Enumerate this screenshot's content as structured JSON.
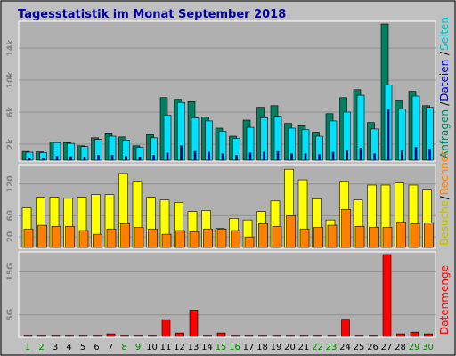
{
  "chart_data": {
    "type": "bar",
    "title": "Tagesstatistik im Monat September 2018",
    "colors": {
      "background": "#c0c0c0",
      "title": "#0000a0",
      "anfragen": "#008060",
      "dateien": "#00e0ff",
      "seiten": "#0000c0",
      "besuche": "#ffff00",
      "rechner": "#ff8000",
      "datenmenge": "#ff0000",
      "weekday_label": "#0000a0",
      "weekend_label": "#008000"
    },
    "legend": {
      "upper": [
        {
          "text": "Anfragen",
          "color": "#008060"
        },
        {
          "text": "Dateien",
          "color": "#0000c0"
        },
        {
          "text": "Seiten",
          "color": "#00c0c0"
        }
      ],
      "middle": [
        {
          "text": "Besuche",
          "color": "#c0c000"
        },
        {
          "text": "Rechner",
          "color": "#ff8000"
        }
      ],
      "lower": [
        {
          "text": "Datenmenge",
          "color": "#ff0000"
        }
      ]
    },
    "days": [
      1,
      2,
      3,
      4,
      5,
      6,
      7,
      8,
      9,
      10,
      11,
      12,
      13,
      14,
      15,
      16,
      17,
      18,
      19,
      20,
      21,
      22,
      23,
      24,
      25,
      26,
      27,
      28,
      29,
      30
    ],
    "weekend_days": [
      1,
      2,
      8,
      9,
      15,
      16,
      22,
      23,
      29,
      30
    ],
    "panels": {
      "requests": {
        "ticks": [
          {
            "label": "2k",
            "value": 2000
          },
          {
            "label": "6k",
            "value": 6000
          },
          {
            "label": "10k",
            "value": 10000
          },
          {
            "label": "14k",
            "value": 14000
          }
        ],
        "ymax": 17000,
        "series": [
          {
            "name": "Anfragen",
            "values": [
              1100,
              1050,
              2300,
              2200,
              1800,
              2800,
              3400,
              2900,
              1800,
              3200,
              7800,
              7600,
              7300,
              5400,
              4000,
              3000,
              5000,
              6600,
              6800,
              4600,
              4300,
              3500,
              5800,
              7800,
              8800,
              4700,
              17000,
              7500,
              8600,
              6800
            ]
          },
          {
            "name": "Dateien",
            "values": [
              1000,
              950,
              2200,
              2100,
              1700,
              2600,
              3000,
              2500,
              1600,
              2800,
              5600,
              7200,
              5300,
              4900,
              3600,
              2700,
              4100,
              5300,
              5500,
              4000,
              3800,
              3000,
              4900,
              6000,
              8100,
              3900,
              9400,
              6400,
              8000,
              6600
            ]
          },
          {
            "name": "Seiten",
            "values": [
              300,
              250,
              500,
              450,
              400,
              600,
              600,
              500,
              400,
              600,
              900,
              1800,
              1100,
              1000,
              800,
              600,
              900,
              1000,
              1100,
              800,
              800,
              700,
              1000,
              1200,
              1500,
              800,
              6300,
              1200,
              1600,
              1400
            ]
          }
        ]
      },
      "visits": {
        "ticks": [
          {
            "label": "20",
            "value": 20
          },
          {
            "label": "60",
            "value": 60
          },
          {
            "label": "120",
            "value": 120
          }
        ],
        "ymax": 150,
        "series": [
          {
            "name": "Besuche",
            "values": [
              75,
              95,
              95,
              93,
              95,
              100,
              100,
              140,
              125,
              95,
              90,
              85,
              68,
              70,
              36,
              55,
              52,
              68,
              88,
              148,
              128,
              92,
              52,
              125,
              90,
              118,
              118,
              122,
              118,
              110
            ]
          },
          {
            "name": "Rechner",
            "values": [
              35,
              42,
              40,
              40,
              32,
              25,
              35,
              45,
              38,
              35,
              25,
              32,
              30,
              35,
              35,
              32,
              20,
              45,
              40,
              60,
              35,
              38,
              42,
              72,
              40,
              38,
              38,
              48,
              45,
              46
            ]
          }
        ]
      },
      "volume": {
        "ticks": [
          {
            "label": "5G",
            "value": 5
          },
          {
            "label": "15G",
            "value": 15
          }
        ],
        "ymax": 19,
        "series": [
          {
            "name": "Datenmenge",
            "values": [
              0.3,
              0.3,
              0.3,
              0.3,
              0.3,
              0.3,
              0.6,
              0.3,
              0.3,
              0.3,
              3.9,
              0.8,
              6.1,
              0.3,
              0.8,
              0.3,
              0.3,
              0.3,
              0.3,
              0.3,
              0.3,
              0.3,
              0.3,
              4.0,
              0.3,
              0.3,
              19.0,
              0.6,
              1.0,
              0.6
            ]
          }
        ]
      }
    }
  }
}
